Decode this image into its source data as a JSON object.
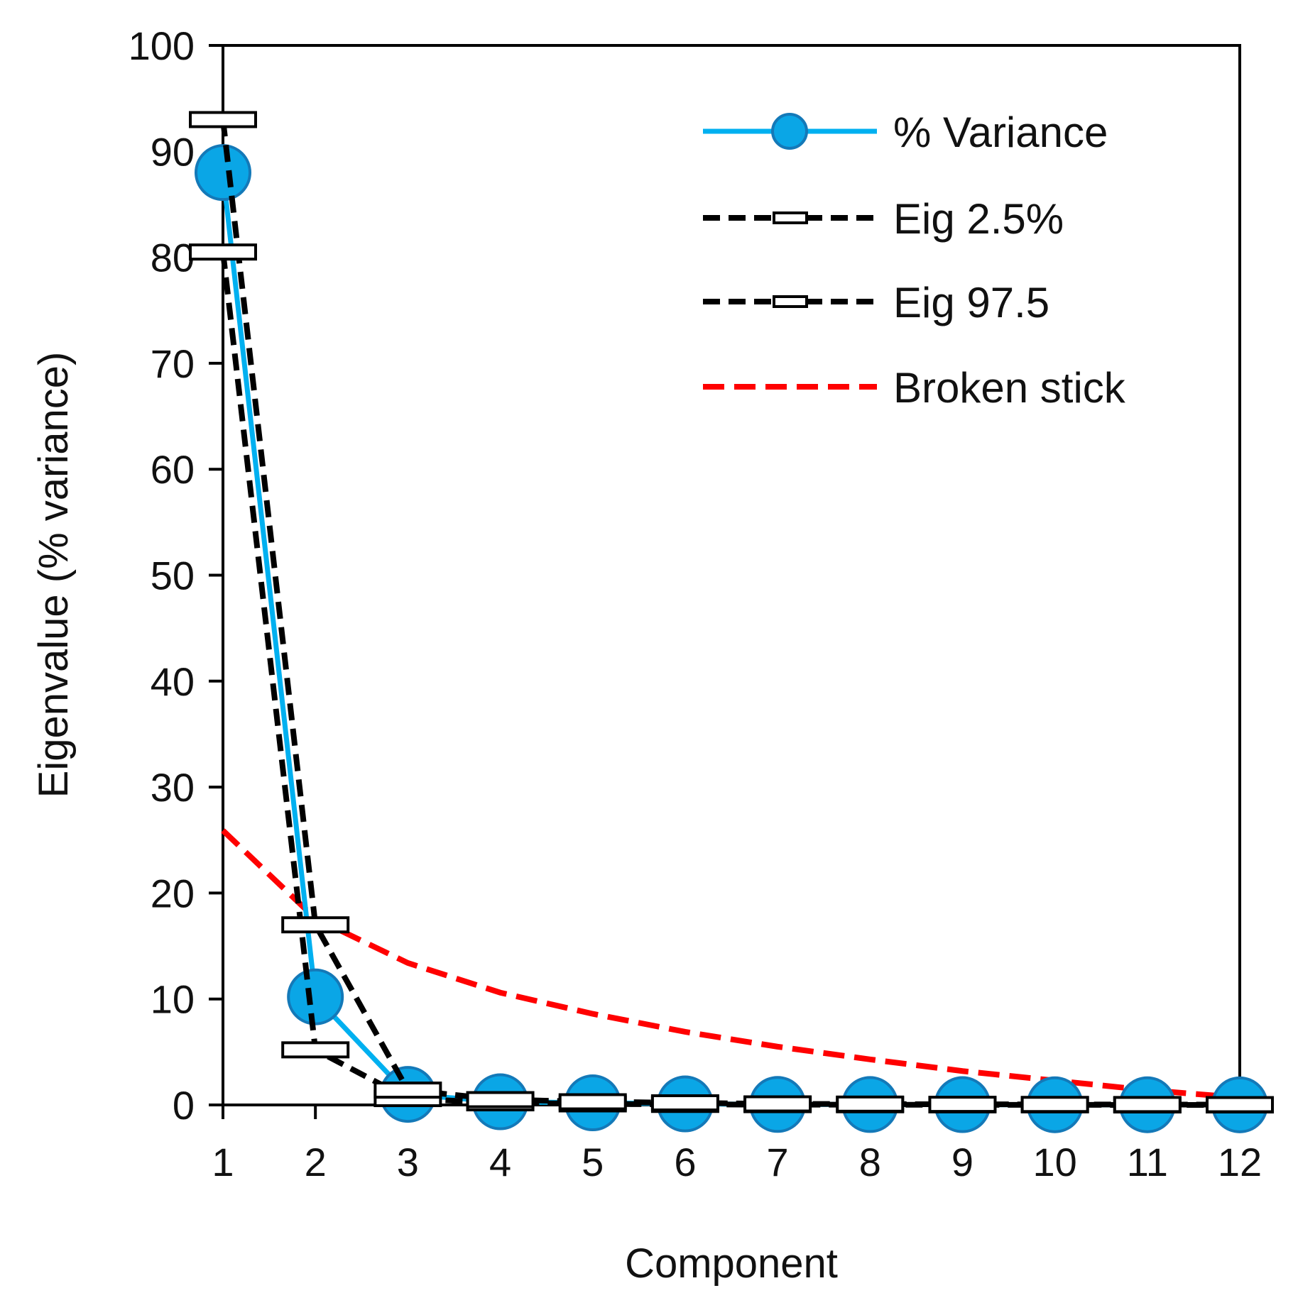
{
  "chart_data": {
    "type": "line",
    "title": "",
    "xlabel": "Component",
    "ylabel": "Eigenvalue (% variance)",
    "xlim": [
      1,
      12
    ],
    "ylim": [
      0,
      100
    ],
    "x": [
      1,
      2,
      3,
      4,
      5,
      6,
      7,
      8,
      9,
      10,
      11,
      12
    ],
    "x_ticks": [
      "1",
      "2",
      "3",
      "4",
      "5",
      "6",
      "7",
      "8",
      "9",
      "10",
      "11",
      "12"
    ],
    "y_ticks": [
      "0",
      "10",
      "20",
      "30",
      "40",
      "50",
      "60",
      "70",
      "80",
      "90",
      "100"
    ],
    "grid": false,
    "legend_position": "top-right",
    "series": [
      {
        "name": "% Variance",
        "style": "solid-circles",
        "color": "#00b0f0",
        "marker_fill": "#0aa6e6",
        "marker_edge": "#1479b8",
        "values": [
          88.0,
          10.2,
          1.0,
          0.3,
          0.2,
          0.1,
          0.05,
          0.04,
          0.03,
          0.02,
          0.02,
          0.01
        ]
      },
      {
        "name": "Eig 2.5%",
        "style": "dashed-black-rect-markers",
        "color": "#000000",
        "values": [
          80.5,
          5.2,
          0.6,
          0.2,
          0.1,
          0.05,
          0.03,
          0.02,
          0.01,
          0.01,
          0.0,
          0.0
        ]
      },
      {
        "name": "Eig 97.5",
        "style": "dashed-black-rect-markers",
        "color": "#000000",
        "values": [
          93.0,
          17.0,
          1.4,
          0.5,
          0.3,
          0.2,
          0.1,
          0.08,
          0.06,
          0.05,
          0.04,
          0.03
        ]
      },
      {
        "name": "Broken stick",
        "style": "dashed-red",
        "color": "#ff0000",
        "values": [
          25.9,
          17.6,
          13.4,
          10.6,
          8.6,
          6.9,
          5.5,
          4.3,
          3.2,
          2.3,
          1.4,
          0.7
        ]
      }
    ]
  }
}
